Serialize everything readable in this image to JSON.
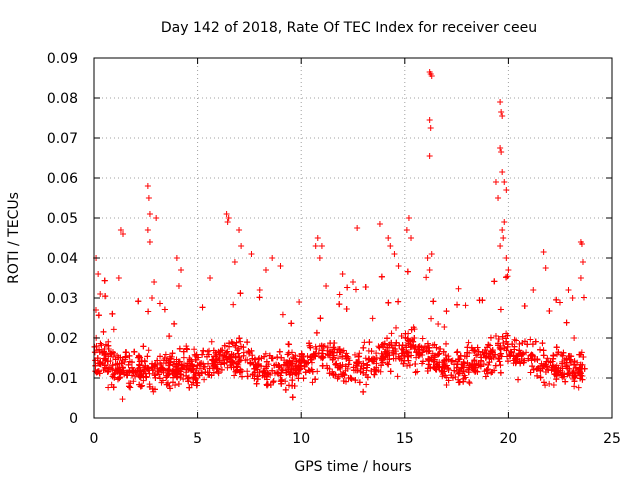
{
  "chart_data": {
    "type": "scatter",
    "title": "Day 142 of 2018, Rate Of TEC Index for receiver ceeu",
    "xlabel": "GPS time / hours",
    "ylabel": "ROTI / TECUs",
    "xlim": [
      0,
      25
    ],
    "ylim": [
      0,
      0.09
    ],
    "xticks": [
      0,
      5,
      10,
      15,
      20,
      25
    ],
    "yticks": [
      0,
      0.01,
      0.02,
      0.03,
      0.04,
      0.05,
      0.06,
      0.07,
      0.08,
      0.09
    ],
    "xtick_labels": [
      "0",
      "5",
      "10",
      "15",
      "20",
      "25"
    ],
    "ytick_labels": [
      "0",
      "0.01",
      "0.02",
      "0.03",
      "0.04",
      "0.05",
      "0.06",
      "0.07",
      "0.08",
      "0.09"
    ],
    "grid": true,
    "marker": "+",
    "color": "#ff0000",
    "series": [
      {
        "name": "ROTI",
        "x_range": [
          0,
          23.7
        ],
        "typical_range": [
          0.005,
          0.025
        ],
        "notable_points": [
          {
            "x": 0.1,
            "y": 0.04
          },
          {
            "x": 0.2,
            "y": 0.036
          },
          {
            "x": 0.3,
            "y": 0.031
          },
          {
            "x": 1.3,
            "y": 0.047
          },
          {
            "x": 1.4,
            "y": 0.046
          },
          {
            "x": 1.2,
            "y": 0.035
          },
          {
            "x": 2.6,
            "y": 0.058
          },
          {
            "x": 2.65,
            "y": 0.055
          },
          {
            "x": 2.7,
            "y": 0.051
          },
          {
            "x": 2.6,
            "y": 0.047
          },
          {
            "x": 2.7,
            "y": 0.044
          },
          {
            "x": 3.0,
            "y": 0.05
          },
          {
            "x": 2.9,
            "y": 0.034
          },
          {
            "x": 2.8,
            "y": 0.03
          },
          {
            "x": 4.0,
            "y": 0.04
          },
          {
            "x": 4.2,
            "y": 0.037
          },
          {
            "x": 4.1,
            "y": 0.033
          },
          {
            "x": 5.6,
            "y": 0.035
          },
          {
            "x": 6.4,
            "y": 0.051
          },
          {
            "x": 6.5,
            "y": 0.05
          },
          {
            "x": 6.45,
            "y": 0.049
          },
          {
            "x": 7.0,
            "y": 0.047
          },
          {
            "x": 7.1,
            "y": 0.043
          },
          {
            "x": 6.8,
            "y": 0.039
          },
          {
            "x": 7.6,
            "y": 0.041
          },
          {
            "x": 8.6,
            "y": 0.04
          },
          {
            "x": 8.3,
            "y": 0.037
          },
          {
            "x": 9.0,
            "y": 0.038
          },
          {
            "x": 8.0,
            "y": 0.032
          },
          {
            "x": 9.9,
            "y": 0.029
          },
          {
            "x": 10.8,
            "y": 0.045
          },
          {
            "x": 10.7,
            "y": 0.043
          },
          {
            "x": 11.0,
            "y": 0.043
          },
          {
            "x": 10.9,
            "y": 0.04
          },
          {
            "x": 11.2,
            "y": 0.033
          },
          {
            "x": 12.0,
            "y": 0.036
          },
          {
            "x": 12.5,
            "y": 0.034
          },
          {
            "x": 12.7,
            "y": 0.0475
          },
          {
            "x": 13.8,
            "y": 0.0485
          },
          {
            "x": 14.2,
            "y": 0.045
          },
          {
            "x": 14.3,
            "y": 0.043
          },
          {
            "x": 14.5,
            "y": 0.041
          },
          {
            "x": 14.7,
            "y": 0.038
          },
          {
            "x": 15.2,
            "y": 0.05
          },
          {
            "x": 15.1,
            "y": 0.047
          },
          {
            "x": 15.3,
            "y": 0.045
          },
          {
            "x": 16.2,
            "y": 0.0865
          },
          {
            "x": 16.25,
            "y": 0.086
          },
          {
            "x": 16.3,
            "y": 0.0855
          },
          {
            "x": 16.2,
            "y": 0.0745
          },
          {
            "x": 16.25,
            "y": 0.0725
          },
          {
            "x": 16.2,
            "y": 0.0655
          },
          {
            "x": 16.3,
            "y": 0.041
          },
          {
            "x": 16.1,
            "y": 0.04
          },
          {
            "x": 16.2,
            "y": 0.037
          },
          {
            "x": 19.4,
            "y": 0.059
          },
          {
            "x": 19.5,
            "y": 0.055
          },
          {
            "x": 19.6,
            "y": 0.079
          },
          {
            "x": 19.65,
            "y": 0.0765
          },
          {
            "x": 19.7,
            "y": 0.0755
          },
          {
            "x": 19.6,
            "y": 0.0675
          },
          {
            "x": 19.65,
            "y": 0.0665
          },
          {
            "x": 19.7,
            "y": 0.0615
          },
          {
            "x": 19.8,
            "y": 0.059
          },
          {
            "x": 19.9,
            "y": 0.057
          },
          {
            "x": 19.8,
            "y": 0.049
          },
          {
            "x": 19.7,
            "y": 0.047
          },
          {
            "x": 19.75,
            "y": 0.045
          },
          {
            "x": 19.6,
            "y": 0.043
          },
          {
            "x": 19.9,
            "y": 0.04
          },
          {
            "x": 20.0,
            "y": 0.037
          },
          {
            "x": 21.7,
            "y": 0.0415
          },
          {
            "x": 21.8,
            "y": 0.0375
          },
          {
            "x": 21.2,
            "y": 0.032
          },
          {
            "x": 22.9,
            "y": 0.032
          },
          {
            "x": 23.1,
            "y": 0.03
          },
          {
            "x": 23.5,
            "y": 0.044
          },
          {
            "x": 23.55,
            "y": 0.0435
          },
          {
            "x": 23.6,
            "y": 0.039
          },
          {
            "x": 23.5,
            "y": 0.035
          }
        ]
      }
    ]
  }
}
